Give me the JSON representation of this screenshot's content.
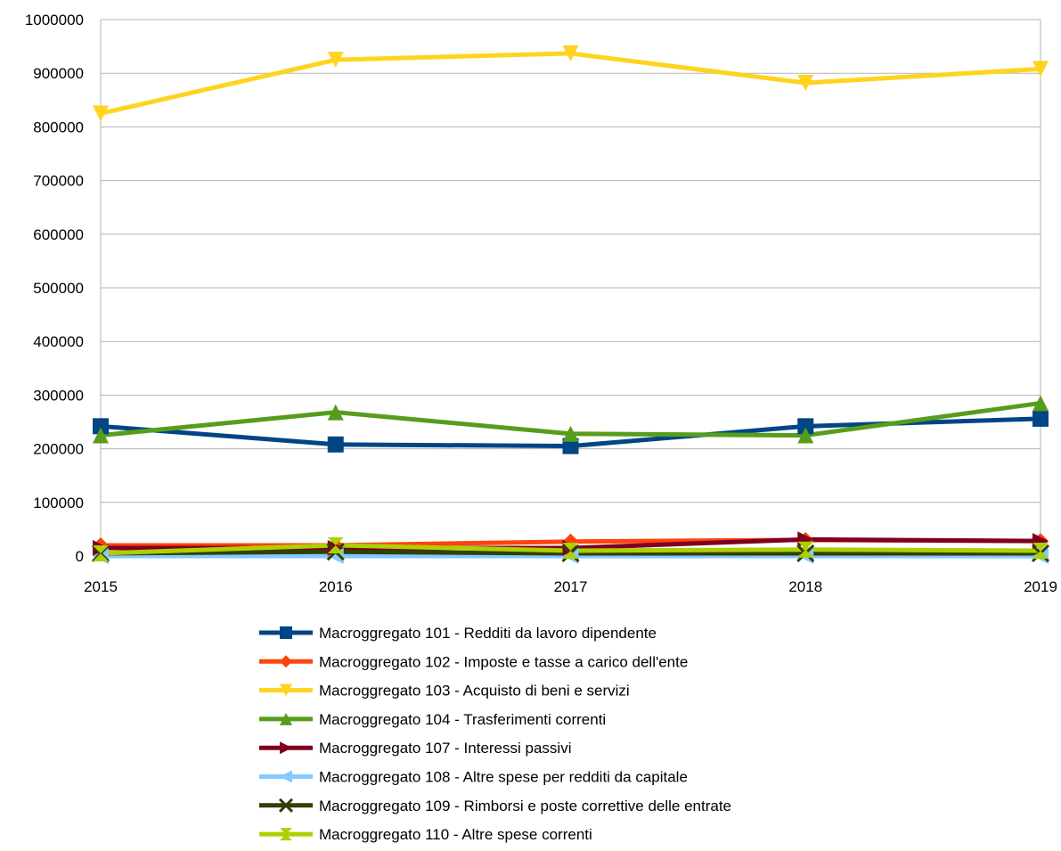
{
  "chart_data": {
    "type": "line",
    "title": "",
    "xlabel": "",
    "ylabel": "",
    "x": [
      "2015",
      "2016",
      "2017",
      "2018",
      "2019"
    ],
    "ylim": [
      0,
      1000000
    ],
    "yticks": [
      0,
      100000,
      200000,
      300000,
      400000,
      500000,
      600000,
      700000,
      800000,
      900000,
      1000000
    ],
    "ytick_labels": [
      "0",
      "100000",
      "200000",
      "300000",
      "400000",
      "500000",
      "600000",
      "700000",
      "800000",
      "900000",
      "1000000"
    ],
    "grid": "horizontal",
    "legend_position": "bottom",
    "series": [
      {
        "name": "Macroggregato 101 - Redditi da lavoro dipendente",
        "color": "#004586",
        "marker": "square",
        "values": [
          242000,
          208000,
          205000,
          242000,
          256000
        ]
      },
      {
        "name": "Macroggregato 102 - Imposte e tasse a carico dell'ente",
        "color": "#ff420e",
        "marker": "diamond",
        "values": [
          20000,
          20000,
          27000,
          30000,
          28000
        ]
      },
      {
        "name": "Macroggregato 103 - Acquisto di beni e servizi",
        "color": "#ffd320",
        "marker": "triangle-down",
        "values": [
          825000,
          925000,
          937000,
          882000,
          908000
        ]
      },
      {
        "name": "Macroggregato 104 - Trasferimenti correnti",
        "color": "#579d1c",
        "marker": "triangle-up",
        "values": [
          225000,
          268000,
          228000,
          225000,
          285000
        ]
      },
      {
        "name": "Macroggregato 107 - Interessi passivi",
        "color": "#7e0021",
        "marker": "triangle-right",
        "values": [
          15000,
          15000,
          15000,
          31000,
          28000
        ]
      },
      {
        "name": "Macroggregato 108 - Altre spese per redditi da capitale",
        "color": "#83caff",
        "marker": "triangle-left",
        "values": [
          0,
          0,
          0,
          0,
          0
        ]
      },
      {
        "name": "Macroggregato 109 - Rimborsi e poste correttive delle entrate",
        "color": "#314004",
        "marker": "x",
        "values": [
          5000,
          8000,
          5000,
          5000,
          5000
        ]
      },
      {
        "name": "Macroggregato 110 - Altre spese correnti",
        "color": "#aecf00",
        "marker": "hourglass",
        "values": [
          5000,
          20000,
          10000,
          12000,
          10000
        ]
      }
    ]
  }
}
